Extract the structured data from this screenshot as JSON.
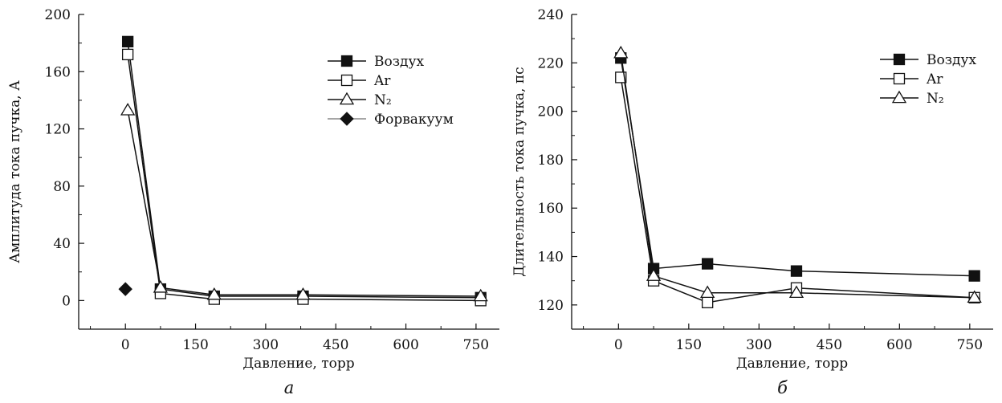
{
  "chart_data": [
    {
      "type": "line",
      "panel_letter": "а",
      "xlabel": "Давление, торр",
      "ylabel": "Амплитуда тока пучка, А",
      "xlim": [
        -100,
        800
      ],
      "ylim": [
        -20,
        200
      ],
      "x_ticks": [
        0,
        150,
        300,
        450,
        600,
        750
      ],
      "y_ticks": [
        0,
        40,
        80,
        120,
        160,
        200
      ],
      "grid": false,
      "legend_position": "top-right",
      "series": [
        {
          "name": "Воздух",
          "marker": "filled-square",
          "x": [
            5,
            75,
            190,
            380,
            760
          ],
          "y": [
            181,
            8,
            3,
            3,
            2
          ]
        },
        {
          "name": "Ar",
          "marker": "open-square",
          "x": [
            5,
            75,
            190,
            380,
            760
          ],
          "y": [
            172,
            5,
            1,
            1,
            0
          ]
        },
        {
          "name": "N₂",
          "marker": "open-triangle",
          "x": [
            5,
            75,
            190,
            380,
            760
          ],
          "y": [
            133,
            9,
            4,
            4,
            3
          ]
        },
        {
          "name": "Форвакуум",
          "marker": "filled-diamond",
          "x": [
            0
          ],
          "y": [
            8
          ]
        }
      ]
    },
    {
      "type": "line",
      "panel_letter": "б",
      "xlabel": "Давление, торр",
      "ylabel": "Длительность тока пучка, пс",
      "xlim": [
        -100,
        800
      ],
      "ylim": [
        110,
        240
      ],
      "x_ticks": [
        0,
        150,
        300,
        450,
        600,
        750
      ],
      "y_ticks": [
        120,
        140,
        160,
        180,
        200,
        220,
        240
      ],
      "grid": false,
      "legend_position": "top-right",
      "series": [
        {
          "name": "Воздух",
          "marker": "filled-square",
          "x": [
            5,
            75,
            190,
            380,
            760
          ],
          "y": [
            222,
            135,
            137,
            134,
            132
          ]
        },
        {
          "name": "Ar",
          "marker": "open-square",
          "x": [
            5,
            75,
            190,
            380,
            760
          ],
          "y": [
            214,
            130,
            121,
            127,
            123
          ]
        },
        {
          "name": "N₂",
          "marker": "open-triangle",
          "x": [
            5,
            75,
            190,
            380,
            760
          ],
          "y": [
            224,
            132,
            125,
            125,
            123
          ]
        }
      ]
    }
  ]
}
